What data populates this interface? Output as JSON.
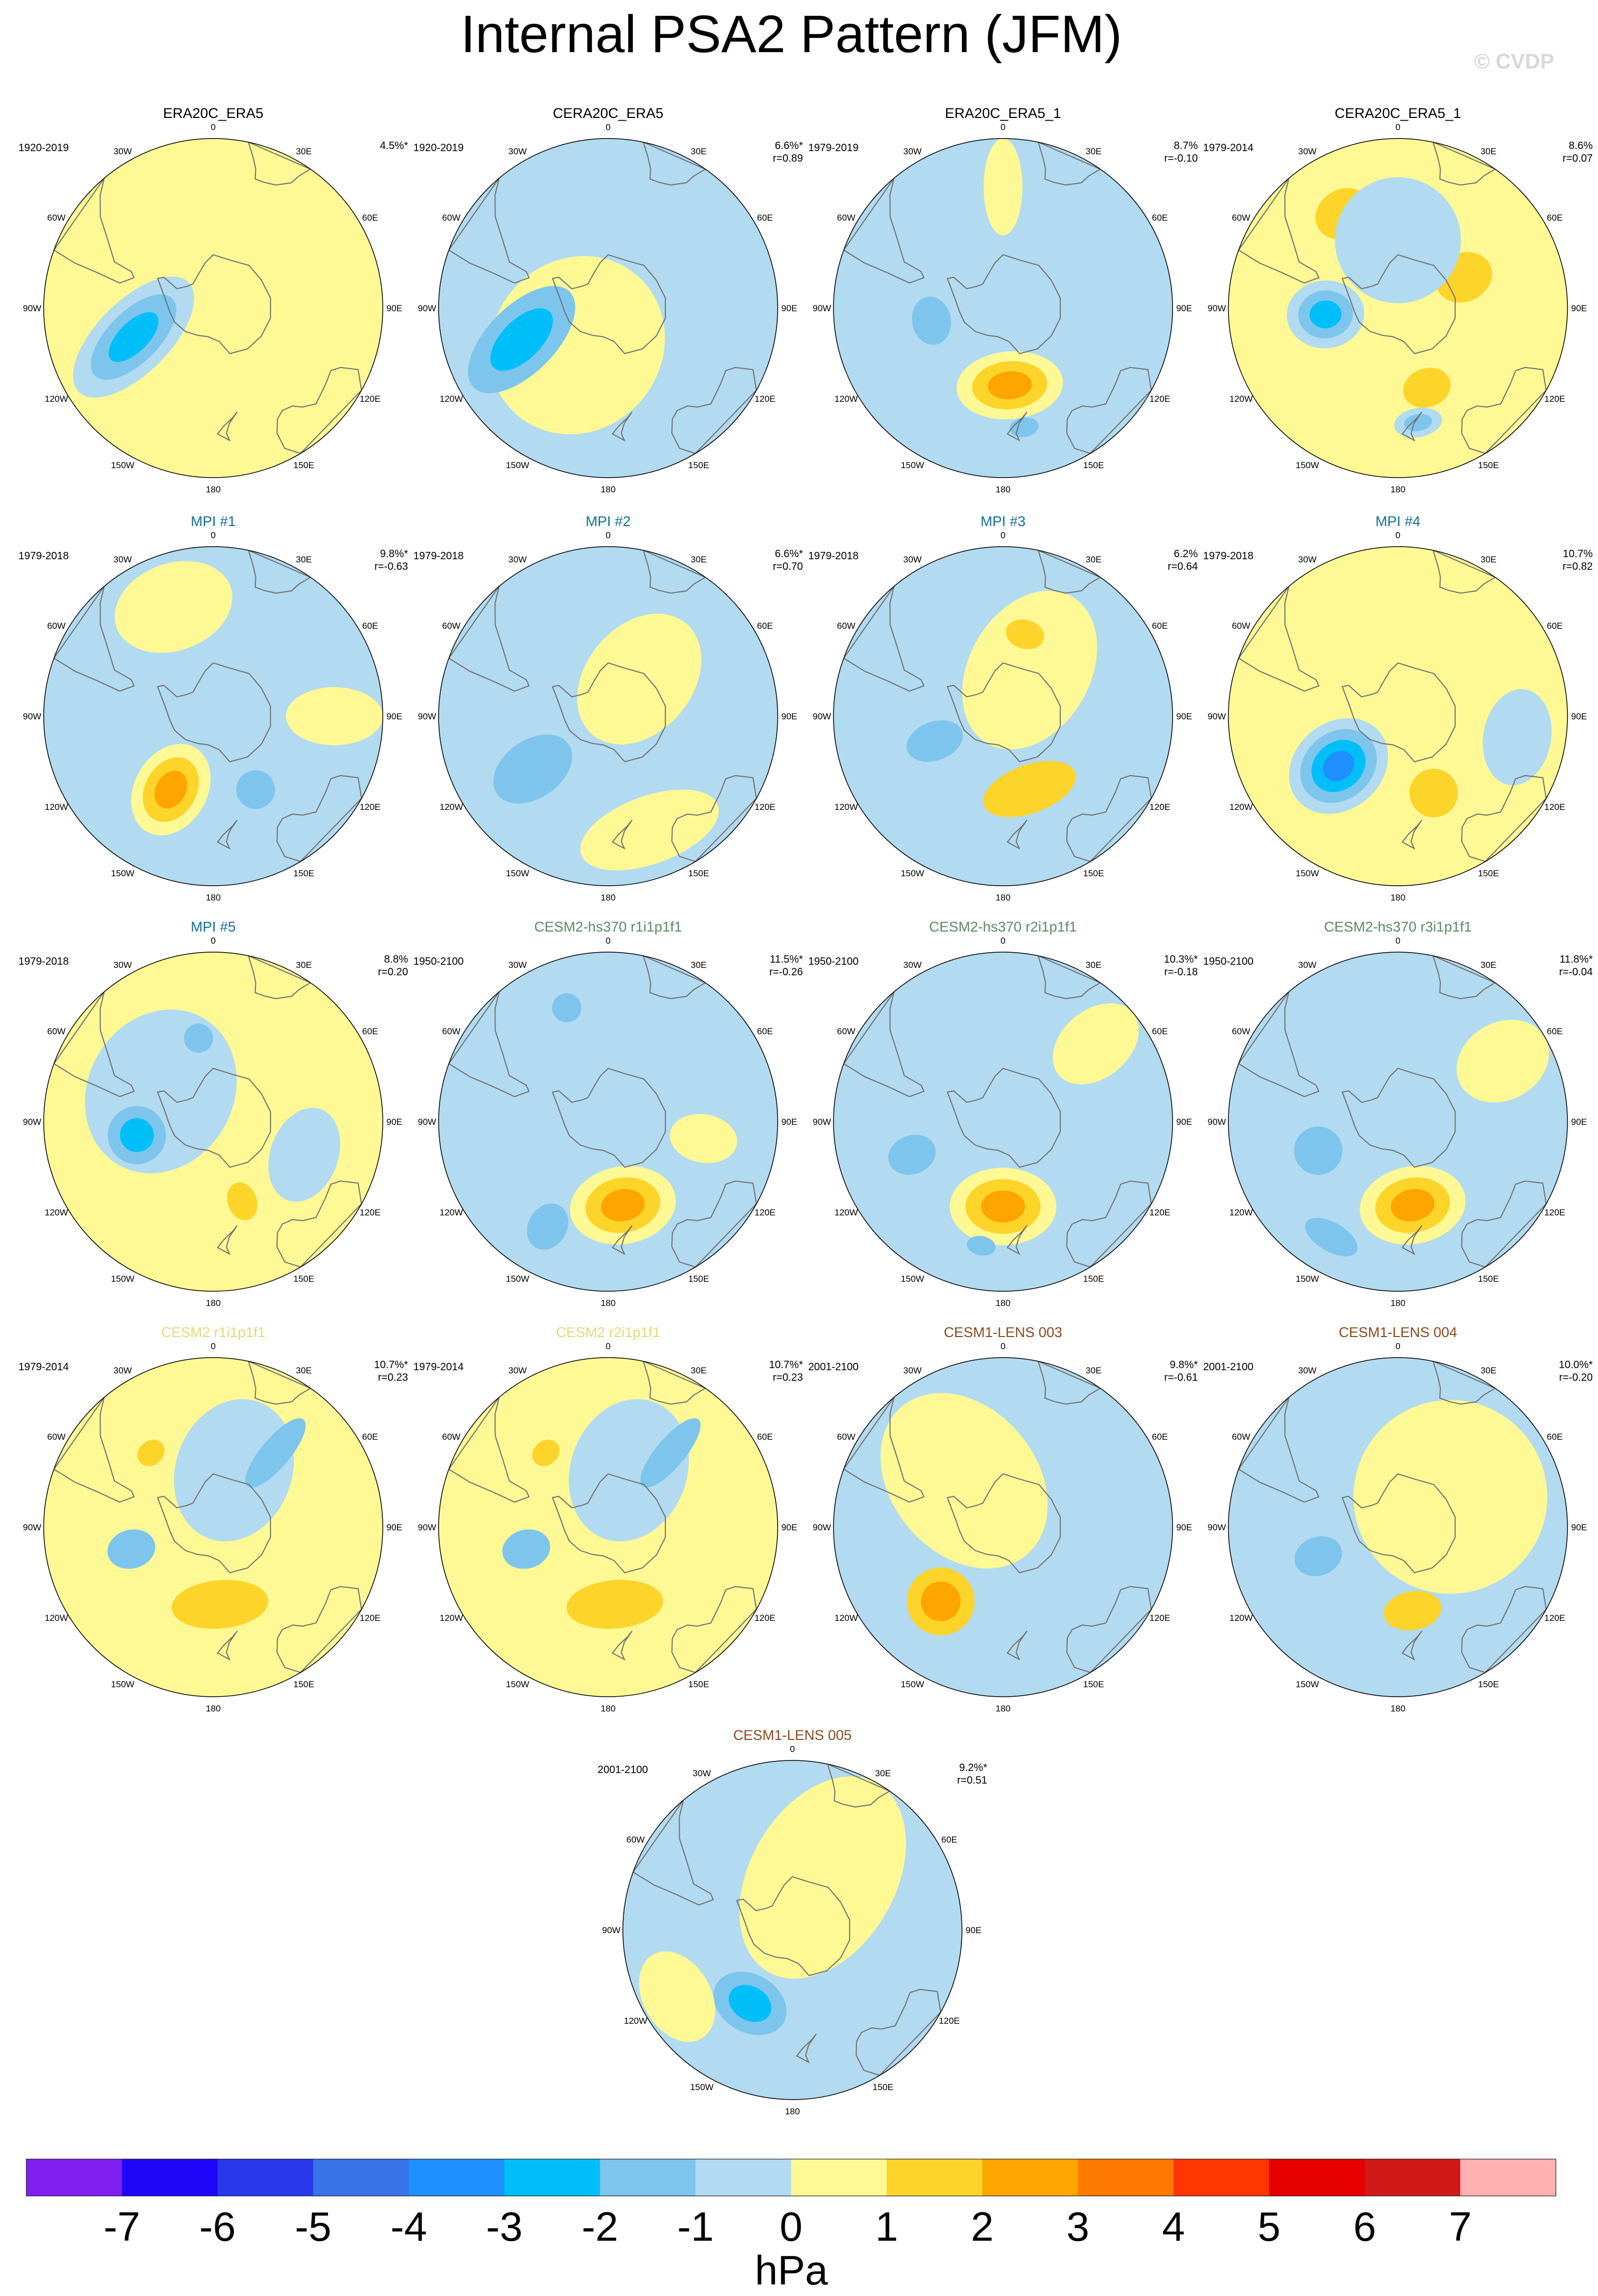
{
  "title": "Internal PSA2 Pattern (JFM)",
  "copyright": "© CVDP",
  "colors": {
    "neg_weak": "#b2daf0",
    "neg_1": "#7ec5ed",
    "neg_2": "#00bff8",
    "neg_3": "#1e90ff",
    "neg_4": "#2f74f0",
    "pos_weak": "#fef995",
    "pos_1": "#fdd42a",
    "pos_2": "#fea500",
    "pos_3": "#fe7a00",
    "coast": "#707070"
  },
  "longitude_labels": [
    "0",
    "30E",
    "60E",
    "90E",
    "120E",
    "150E",
    "180",
    "150W",
    "120W",
    "90W",
    "60W",
    "30W"
  ],
  "panels": [
    {
      "title": "ERA20C_ERA5",
      "title_color": "#000000",
      "period": "1920-2019",
      "variance": "4.5%*",
      "r": "",
      "bg": "pos_weak",
      "blobs": [
        {
          "lat": -55,
          "lon": -110,
          "rx": 15,
          "ry": 32,
          "rot": -25,
          "levels": [
            "neg_weak",
            "neg_1",
            "neg_2"
          ]
        }
      ]
    },
    {
      "title": "CERA20C_ERA5",
      "title_color": "#000000",
      "period": "1920-2019",
      "variance": "6.6%*",
      "r": "r=0.89",
      "bg": "neg_weak",
      "blobs": [
        {
          "lat": -70,
          "lon": -140,
          "rx": 35,
          "ry": 38,
          "rot": 0,
          "levels": [
            "pos_weak"
          ]
        },
        {
          "lat": -52,
          "lon": -110,
          "rx": 14,
          "ry": 28,
          "rot": -25,
          "levels": [
            "neg_1",
            "neg_2"
          ]
        }
      ]
    },
    {
      "title": "ERA20C_ERA5_1",
      "title_color": "#000000",
      "period": "1979-2019",
      "variance": "8.7%",
      "r": "r=-0.10",
      "bg": "neg_weak",
      "blobs": [
        {
          "lat": -58,
          "lon": 175,
          "rx": 22,
          "ry": 14,
          "rot": 0,
          "levels": [
            "pos_weak",
            "pos_1",
            "pos_2"
          ]
        },
        {
          "lat": -60,
          "lon": -100,
          "rx": 10,
          "ry": 8,
          "rot": 0,
          "levels": [
            "neg_1"
          ]
        },
        {
          "lat": -40,
          "lon": 170,
          "rx": 6,
          "ry": 4,
          "rot": 0,
          "levels": [
            "neg_1"
          ]
        },
        {
          "lat": -40,
          "lon": 0,
          "rx": 8,
          "ry": 20,
          "rot": 0,
          "levels": [
            "pos_weak"
          ]
        }
      ]
    },
    {
      "title": "CERA20C_ERA5_1",
      "title_color": "#000000",
      "period": "1979-2014",
      "variance": "8.6%",
      "r": "r=0.07",
      "bg": "pos_weak",
      "blobs": [
        {
          "lat": -60,
          "lon": -95,
          "rx": 14,
          "ry": 16,
          "rot": 0,
          "levels": [
            "neg_weak",
            "neg_1",
            "neg_2"
          ]
        },
        {
          "lat": -55,
          "lon": 160,
          "rx": 10,
          "ry": 8,
          "rot": 0,
          "levels": [
            "pos_1"
          ]
        },
        {
          "lat": -42,
          "lon": 170,
          "rx": 10,
          "ry": 6,
          "rot": 0,
          "levels": [
            "neg_weak",
            "neg_1"
          ]
        },
        {
          "lat": -45,
          "lon": -30,
          "rx": 12,
          "ry": 10,
          "rot": 0,
          "levels": [
            "pos_1"
          ]
        },
        {
          "lat": -60,
          "lon": 65,
          "rx": 10,
          "ry": 12,
          "rot": 0,
          "levels": [
            "pos_1"
          ]
        },
        {
          "lat": -62,
          "lon": 0,
          "rx": 26,
          "ry": 26,
          "rot": 0,
          "levels": [
            "neg_weak"
          ]
        }
      ]
    },
    {
      "title": "MPI #1",
      "title_color": "#136f99",
      "period": "1979-2018",
      "variance": "9.8%*",
      "r": "r=-0.63",
      "bg": "neg_weak",
      "blobs": [
        {
          "lat": -55,
          "lon": -150,
          "rx": 15,
          "ry": 20,
          "rot": 0,
          "levels": [
            "pos_weak",
            "pos_1",
            "pos_2"
          ]
        },
        {
          "lat": -42,
          "lon": -20,
          "rx": 25,
          "ry": 18,
          "rot": 0,
          "levels": [
            "pos_weak"
          ]
        },
        {
          "lat": -55,
          "lon": 150,
          "rx": 8,
          "ry": 8,
          "rot": 0,
          "levels": [
            "neg_1"
          ]
        },
        {
          "lat": -40,
          "lon": 90,
          "rx": 12,
          "ry": 20,
          "rot": 0,
          "levels": [
            "pos_weak"
          ]
        }
      ]
    },
    {
      "title": "MPI #2",
      "title_color": "#136f99",
      "period": "1979-2018",
      "variance": "6.6%*",
      "r": "r=0.70",
      "bg": "neg_weak",
      "blobs": [
        {
          "lat": -52,
          "lon": -125,
          "rx": 12,
          "ry": 18,
          "rot": 0,
          "levels": [
            "neg_1"
          ]
        },
        {
          "lat": -70,
          "lon": 40,
          "rx": 22,
          "ry": 30,
          "rot": 0,
          "levels": [
            "pos_weak"
          ]
        },
        {
          "lat": -40,
          "lon": 160,
          "rx": 30,
          "ry": 14,
          "rot": 0,
          "levels": [
            "pos_weak"
          ]
        }
      ]
    },
    {
      "title": "MPI #3",
      "title_color": "#136f99",
      "period": "1979-2018",
      "variance": "6.2%",
      "r": "r=0.64",
      "bg": "neg_weak",
      "blobs": [
        {
          "lat": -68,
          "lon": 30,
          "rx": 25,
          "ry": 35,
          "rot": 0,
          "levels": [
            "pos_weak"
          ]
        },
        {
          "lat": -58,
          "lon": 160,
          "rx": 20,
          "ry": 10,
          "rot": 0,
          "levels": [
            "pos_1"
          ]
        },
        {
          "lat": -55,
          "lon": 15,
          "rx": 8,
          "ry": 6,
          "rot": 0,
          "levels": [
            "pos_1"
          ]
        },
        {
          "lat": -60,
          "lon": -110,
          "rx": 8,
          "ry": 12,
          "rot": 0,
          "levels": [
            "neg_1"
          ]
        }
      ]
    },
    {
      "title": "MPI #4",
      "title_color": "#136f99",
      "period": "1979-2018",
      "variance": "10.7%",
      "r": "r=0.82",
      "bg": "pos_weak",
      "blobs": [
        {
          "lat": -58,
          "lon": -130,
          "rx": 18,
          "ry": 22,
          "rot": 0,
          "levels": [
            "neg_weak",
            "neg_1",
            "neg_2",
            "neg_3"
          ]
        },
        {
          "lat": -55,
          "lon": 155,
          "rx": 10,
          "ry": 10,
          "rot": 0,
          "levels": [
            "pos_1"
          ]
        },
        {
          "lat": -40,
          "lon": 100,
          "rx": 20,
          "ry": 14,
          "rot": 0,
          "levels": [
            "neg_weak"
          ]
        }
      ]
    },
    {
      "title": "MPI #5",
      "title_color": "#136f99",
      "period": "1979-2018",
      "variance": "8.8%",
      "r": "r=0.20",
      "bg": "pos_weak",
      "blobs": [
        {
          "lat": -65,
          "lon": -60,
          "rx": 35,
          "ry": 30,
          "rot": 0,
          "levels": [
            "neg_weak"
          ]
        },
        {
          "lat": -58,
          "lon": -100,
          "rx": 12,
          "ry": 12,
          "rot": 0,
          "levels": [
            "neg_1",
            "neg_2"
          ]
        },
        {
          "lat": -55,
          "lon": -10,
          "rx": 6,
          "ry": 6,
          "rot": 0,
          "levels": [
            "neg_1"
          ]
        },
        {
          "lat": -55,
          "lon": 160,
          "rx": 6,
          "ry": 8,
          "rot": 0,
          "levels": [
            "pos_1"
          ]
        },
        {
          "lat": -50,
          "lon": 110,
          "rx": 20,
          "ry": 14,
          "rot": 0,
          "levels": [
            "neg_weak"
          ]
        }
      ]
    },
    {
      "title": "CESM2-hs370 r1i1p1f1",
      "title_color": "#5b8a64",
      "period": "1950-2100",
      "variance": "11.5%*",
      "r": "r=-0.26",
      "bg": "neg_weak",
      "blobs": [
        {
          "lat": -55,
          "lon": 170,
          "rx": 22,
          "ry": 16,
          "rot": 0,
          "levels": [
            "pos_weak",
            "pos_1",
            "pos_2"
          ]
        },
        {
          "lat": -40,
          "lon": -150,
          "rx": 8,
          "ry": 10,
          "rot": 0,
          "levels": [
            "neg_1"
          ]
        },
        {
          "lat": -40,
          "lon": -20,
          "rx": 6,
          "ry": 6,
          "rot": 0,
          "levels": [
            "neg_1"
          ]
        },
        {
          "lat": -50,
          "lon": 100,
          "rx": 10,
          "ry": 14,
          "rot": 0,
          "levels": [
            "pos_weak"
          ]
        }
      ]
    },
    {
      "title": "CESM2-hs370 r2i1p1f1",
      "title_color": "#5b8a64",
      "period": "1950-2100",
      "variance": "10.3%*",
      "r": "r=-0.18",
      "bg": "neg_weak",
      "blobs": [
        {
          "lat": -55,
          "lon": 180,
          "rx": 22,
          "ry": 16,
          "rot": 0,
          "levels": [
            "pos_weak",
            "pos_1",
            "pos_2"
          ]
        },
        {
          "lat": -50,
          "lon": -110,
          "rx": 8,
          "ry": 10,
          "rot": 0,
          "levels": [
            "neg_1"
          ]
        },
        {
          "lat": -38,
          "lon": -170,
          "rx": 6,
          "ry": 4,
          "rot": 0,
          "levels": [
            "neg_1"
          ]
        },
        {
          "lat": -40,
          "lon": 50,
          "rx": 14,
          "ry": 20,
          "rot": 0,
          "levels": [
            "pos_weak"
          ]
        }
      ]
    },
    {
      "title": "CESM2-hs370 r3i1p1f1",
      "title_color": "#5b8a64",
      "period": "1950-2100",
      "variance": "11.8%*",
      "r": "r=-0.04",
      "bg": "neg_weak",
      "blobs": [
        {
          "lat": -55,
          "lon": 170,
          "rx": 22,
          "ry": 16,
          "rot": 0,
          "levels": [
            "pos_weak",
            "pos_1",
            "pos_2"
          ]
        },
        {
          "lat": -55,
          "lon": -110,
          "rx": 10,
          "ry": 10,
          "rot": 0,
          "levels": [
            "neg_1"
          ]
        },
        {
          "lat": -35,
          "lon": -150,
          "rx": 12,
          "ry": 6,
          "rot": 0,
          "levels": [
            "neg_1"
          ]
        },
        {
          "lat": -40,
          "lon": 60,
          "rx": 16,
          "ry": 20,
          "rot": 0,
          "levels": [
            "pos_weak"
          ]
        }
      ]
    },
    {
      "title": "CESM2 r1i1p1f1",
      "title_color": "#e5d87a",
      "period": "1979-2014",
      "variance": "10.7%*",
      "r": "r=0.23",
      "bg": "pos_weak",
      "blobs": [
        {
          "lat": -65,
          "lon": 20,
          "rx": 24,
          "ry": 30,
          "rot": 0,
          "levels": [
            "neg_weak"
          ]
        },
        {
          "lat": -50,
          "lon": 40,
          "rx": 6,
          "ry": 18,
          "rot": 0,
          "levels": [
            "neg_1"
          ]
        },
        {
          "lat": -55,
          "lon": -105,
          "rx": 8,
          "ry": 10,
          "rot": 0,
          "levels": [
            "neg_1"
          ]
        },
        {
          "lat": -58,
          "lon": 175,
          "rx": 20,
          "ry": 10,
          "rot": 0,
          "levels": [
            "pos_1"
          ]
        },
        {
          "lat": -50,
          "lon": -40,
          "rx": 6,
          "ry": 5,
          "rot": 0,
          "levels": [
            "pos_1"
          ]
        }
      ]
    },
    {
      "title": "CESM2 r2i1p1f1",
      "title_color": "#e5d87a",
      "period": "1979-2014",
      "variance": "10.7%*",
      "r": "r=0.23",
      "bg": "pos_weak",
      "blobs": [
        {
          "lat": -65,
          "lon": 20,
          "rx": 24,
          "ry": 30,
          "rot": 0,
          "levels": [
            "neg_weak"
          ]
        },
        {
          "lat": -50,
          "lon": 40,
          "rx": 6,
          "ry": 18,
          "rot": 0,
          "levels": [
            "neg_1"
          ]
        },
        {
          "lat": -55,
          "lon": -105,
          "rx": 8,
          "ry": 10,
          "rot": 0,
          "levels": [
            "neg_1"
          ]
        },
        {
          "lat": -58,
          "lon": 175,
          "rx": 20,
          "ry": 10,
          "rot": 0,
          "levels": [
            "pos_1"
          ]
        },
        {
          "lat": -50,
          "lon": -40,
          "rx": 6,
          "ry": 5,
          "rot": 0,
          "levels": [
            "pos_1"
          ]
        }
      ]
    },
    {
      "title": "CESM1-LENS 003",
      "title_color": "#8a4a1f",
      "period": "2001-2100",
      "variance": "9.8%*",
      "r": "r=-0.61",
      "bg": "neg_weak",
      "blobs": [
        {
          "lat": -65,
          "lon": -40,
          "rx": 30,
          "ry": 40,
          "rot": 0,
          "levels": [
            "pos_weak"
          ]
        },
        {
          "lat": -50,
          "lon": -140,
          "rx": 14,
          "ry": 14,
          "rot": 0,
          "levels": [
            "pos_1",
            "pos_2"
          ]
        }
      ]
    },
    {
      "title": "CESM1-LENS 004",
      "title_color": "#8a4a1f",
      "period": "2001-2100",
      "variance": "10.0%*",
      "r": "r=-0.20",
      "bg": "neg_weak",
      "blobs": [
        {
          "lat": -65,
          "lon": 60,
          "rx": 40,
          "ry": 40,
          "rot": 0,
          "levels": [
            "pos_weak"
          ]
        },
        {
          "lat": -55,
          "lon": -110,
          "rx": 8,
          "ry": 10,
          "rot": 0,
          "levels": [
            "neg_1"
          ]
        },
        {
          "lat": -55,
          "lon": 170,
          "rx": 12,
          "ry": 8,
          "rot": 0,
          "levels": [
            "pos_1"
          ]
        }
      ]
    },
    {
      "title": "CESM1-LENS 005",
      "title_color": "#8a4a1f",
      "period": "2001-2100",
      "variance": "9.2%*",
      "r": "r=0.51",
      "bg": "neg_weak",
      "blobs": [
        {
          "lat": -65,
          "lon": 30,
          "rx": 30,
          "ry": 45,
          "rot": 0,
          "levels": [
            "pos_weak"
          ]
        },
        {
          "lat": -55,
          "lon": -150,
          "rx": 16,
          "ry": 12,
          "rot": 0,
          "levels": [
            "neg_1",
            "neg_2"
          ]
        },
        {
          "lat": -35,
          "lon": -120,
          "rx": 20,
          "ry": 14,
          "rot": 0,
          "levels": [
            "pos_weak"
          ]
        }
      ]
    }
  ],
  "colorbar": {
    "colors": [
      "#8020f0",
      "#1e06f8",
      "#2838ea",
      "#3873e8",
      "#1e90ff",
      "#00bff8",
      "#7ec5ed",
      "#b2daf0",
      "#fef995",
      "#fdd42a",
      "#fea500",
      "#fe7a00",
      "#ff3600",
      "#e60000",
      "#d01818",
      "#ffb0b0"
    ],
    "ticks": [
      "-7",
      "-6",
      "-5",
      "-4",
      "-3",
      "-2",
      "-1",
      "0",
      "1",
      "2",
      "3",
      "4",
      "5",
      "6",
      "7"
    ],
    "unit": "hPa"
  }
}
